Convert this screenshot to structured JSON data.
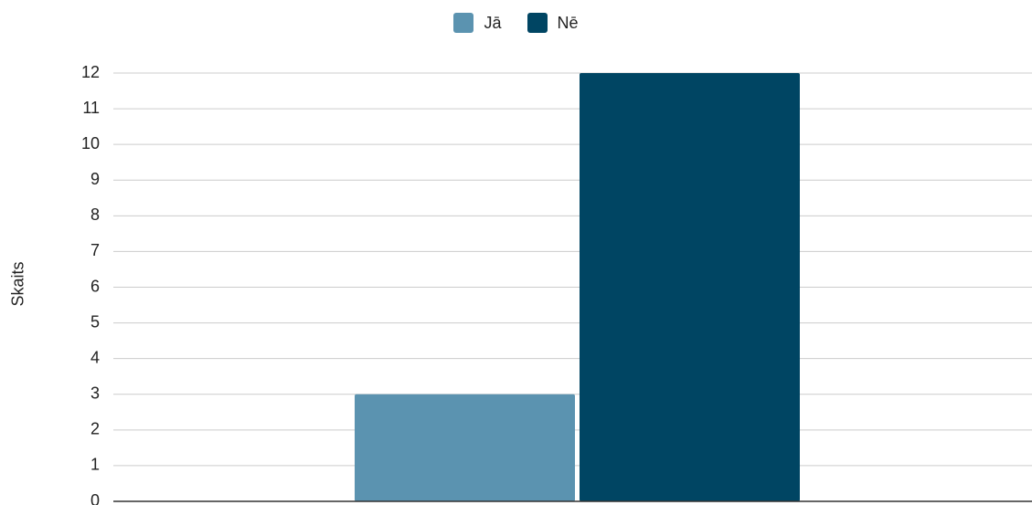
{
  "chart_data": {
    "type": "bar",
    "ylabel": "Skaits",
    "ylim": [
      0,
      12
    ],
    "yticks": [
      0,
      1,
      2,
      3,
      4,
      5,
      6,
      7,
      8,
      9,
      10,
      11,
      12
    ],
    "grid": true,
    "legend_position": "top-center",
    "categories": [
      ""
    ],
    "series": [
      {
        "name": "Jā",
        "color": "#5b93b0",
        "values": [
          3
        ]
      },
      {
        "name": "Nē",
        "color": "#004563",
        "values": [
          12
        ]
      }
    ]
  }
}
